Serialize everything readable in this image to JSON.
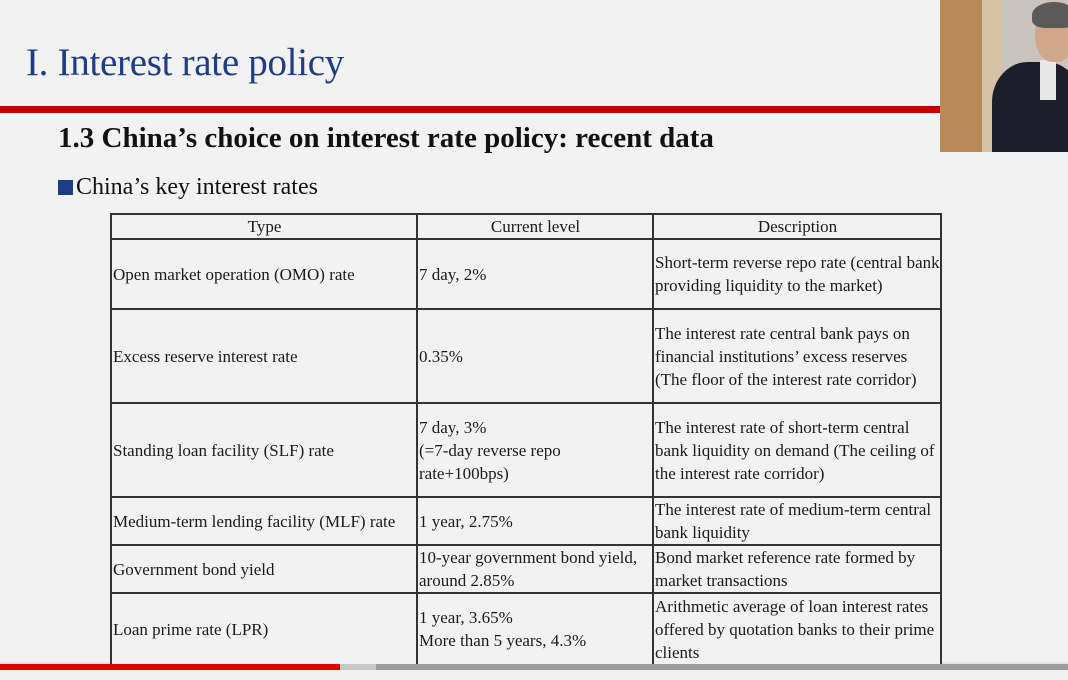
{
  "slide": {
    "title": "I. Interest rate policy",
    "subtitle": "1.3 China’s choice on interest rate policy: recent data",
    "section_label": "China’s key interest rates"
  },
  "table": {
    "headers": [
      "Type",
      "Current level",
      "Description"
    ],
    "rows": [
      {
        "type": "Open market operation (OMO) rate",
        "level": "7 day, 2%",
        "description": "Short-term reverse repo rate (central bank providing liquidity to the market)"
      },
      {
        "type": "Excess reserve interest rate",
        "level": "0.35%",
        "description": "The interest rate central bank pays on financial institutions’ excess reserves (The floor of the interest rate corridor)"
      },
      {
        "type": "Standing loan facility (SLF) rate",
        "level": "7 day, 3%\n(=7-day reverse repo rate+100bps)",
        "description": "The interest rate of short-term central bank liquidity on demand (The ceiling of the interest rate corridor)"
      },
      {
        "type": "Medium-term lending facility (MLF) rate",
        "level": "1 year, 2.75%",
        "description": "The interest rate of medium-term central bank liquidity"
      },
      {
        "type": "Government bond yield",
        "level": "10-year government bond yield, around 2.85%",
        "description": "Bond market reference rate formed by market transactions"
      },
      {
        "type": "Loan prime rate (LPR)",
        "level": "1 year, 3.65%\nMore than 5 years, 4.3%",
        "description": "Arithmetic average of loan interest rates offered by quotation banks to their prime clients"
      }
    ]
  },
  "player": {
    "progress_fraction": 0.318
  },
  "colors": {
    "title": "#1f3c88",
    "rule": "#c00000",
    "progress": "#e00000"
  }
}
